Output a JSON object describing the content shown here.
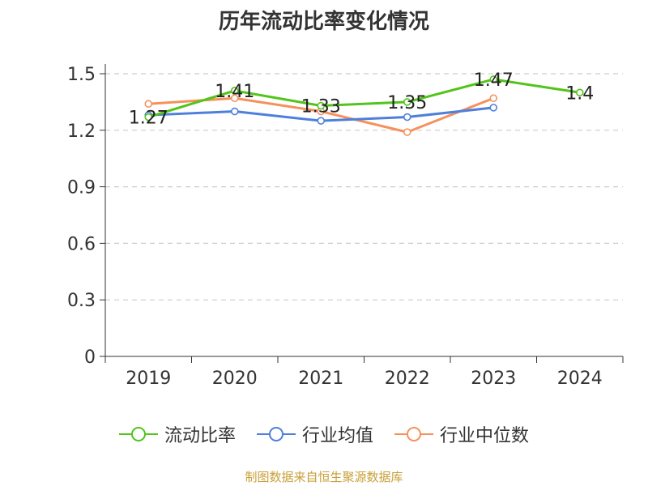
{
  "chart_data": {
    "type": "line",
    "title": "历年流动比率变化情况",
    "categories": [
      "2019",
      "2020",
      "2021",
      "2022",
      "2023",
      "2024"
    ],
    "ylim": [
      0,
      1.5
    ],
    "yticks": [
      "0",
      "0.3",
      "0.6",
      "0.9",
      "1.2",
      "1.5"
    ],
    "grid": true,
    "legend_position": "bottom",
    "series": [
      {
        "name": "流动比率",
        "color": "#52c41a",
        "values": [
          1.27,
          1.41,
          1.33,
          1.35,
          1.47,
          1.4
        ],
        "labels": [
          "1.27",
          "1.41",
          "1.33",
          "1.35",
          "1.47",
          "1.4"
        ]
      },
      {
        "name": "行业均值",
        "color": "#4e7fdc",
        "values": [
          1.28,
          1.3,
          1.25,
          1.27,
          1.32,
          null
        ]
      },
      {
        "name": "行业中位数",
        "color": "#f5915c",
        "values": [
          1.34,
          1.37,
          1.3,
          1.19,
          1.37,
          null
        ]
      }
    ]
  },
  "source": "制图数据来自恒生聚源数据库"
}
